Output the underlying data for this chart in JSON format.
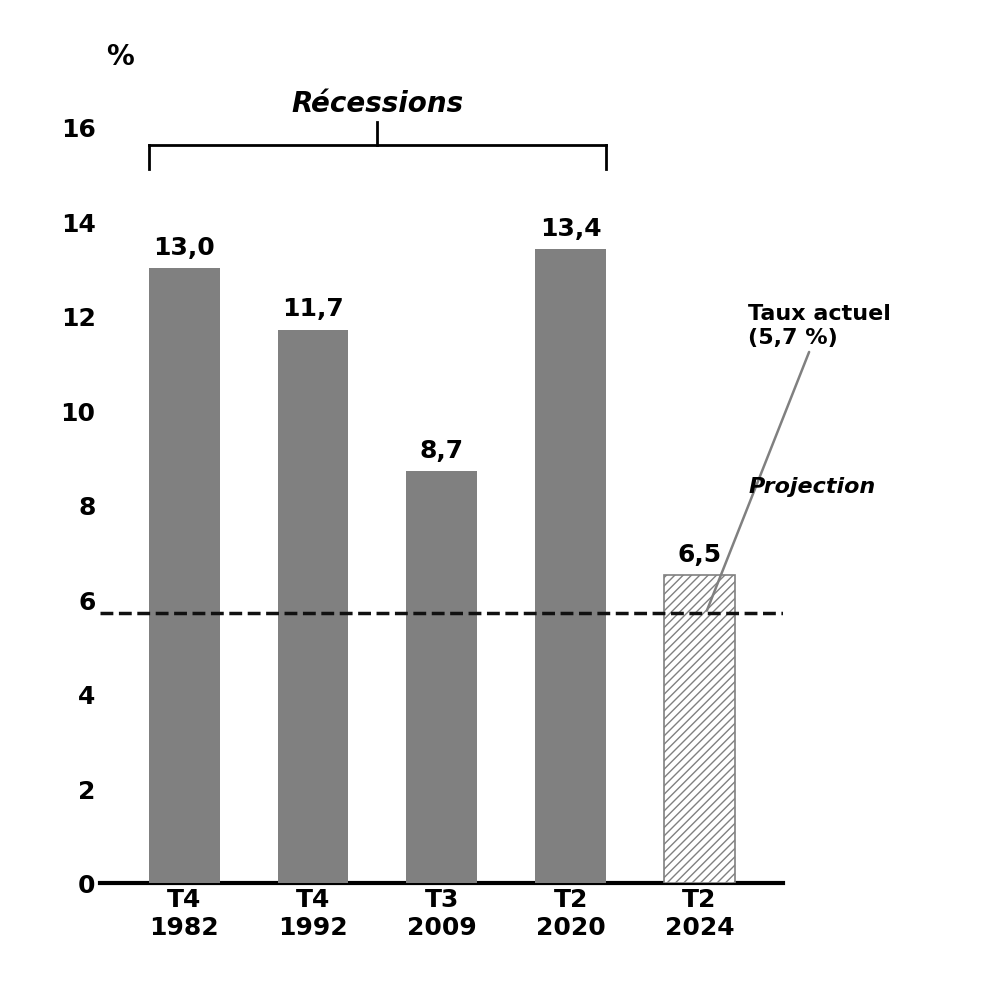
{
  "categories": [
    "T4\n1982",
    "T4\n1992",
    "T3\n2009",
    "T2\n2020",
    "T2\n2024"
  ],
  "values": [
    13.0,
    11.7,
    8.7,
    13.4,
    6.5
  ],
  "value_labels": [
    "13,0",
    "11,7",
    "8,7",
    "13,4",
    "6,5"
  ],
  "solid_color": "#808080",
  "hatch_facecolor": "white",
  "hatch_edgecolor": "#808080",
  "dashed_line_y": 5.7,
  "dashed_line_color": "#111111",
  "recession_label": "Récessions",
  "taux_actuel_label": "Taux actuel\n(5,7 %)",
  "projection_label": "Projection",
  "ylabel": "%",
  "ylim": [
    0,
    17
  ],
  "yticks": [
    0,
    2,
    4,
    6,
    8,
    10,
    12,
    14,
    16
  ],
  "background_color": "#ffffff",
  "bar_width": 0.55,
  "recession_fontsize": 20,
  "label_fontsize": 18,
  "tick_fontsize": 18,
  "annotation_fontsize": 16
}
